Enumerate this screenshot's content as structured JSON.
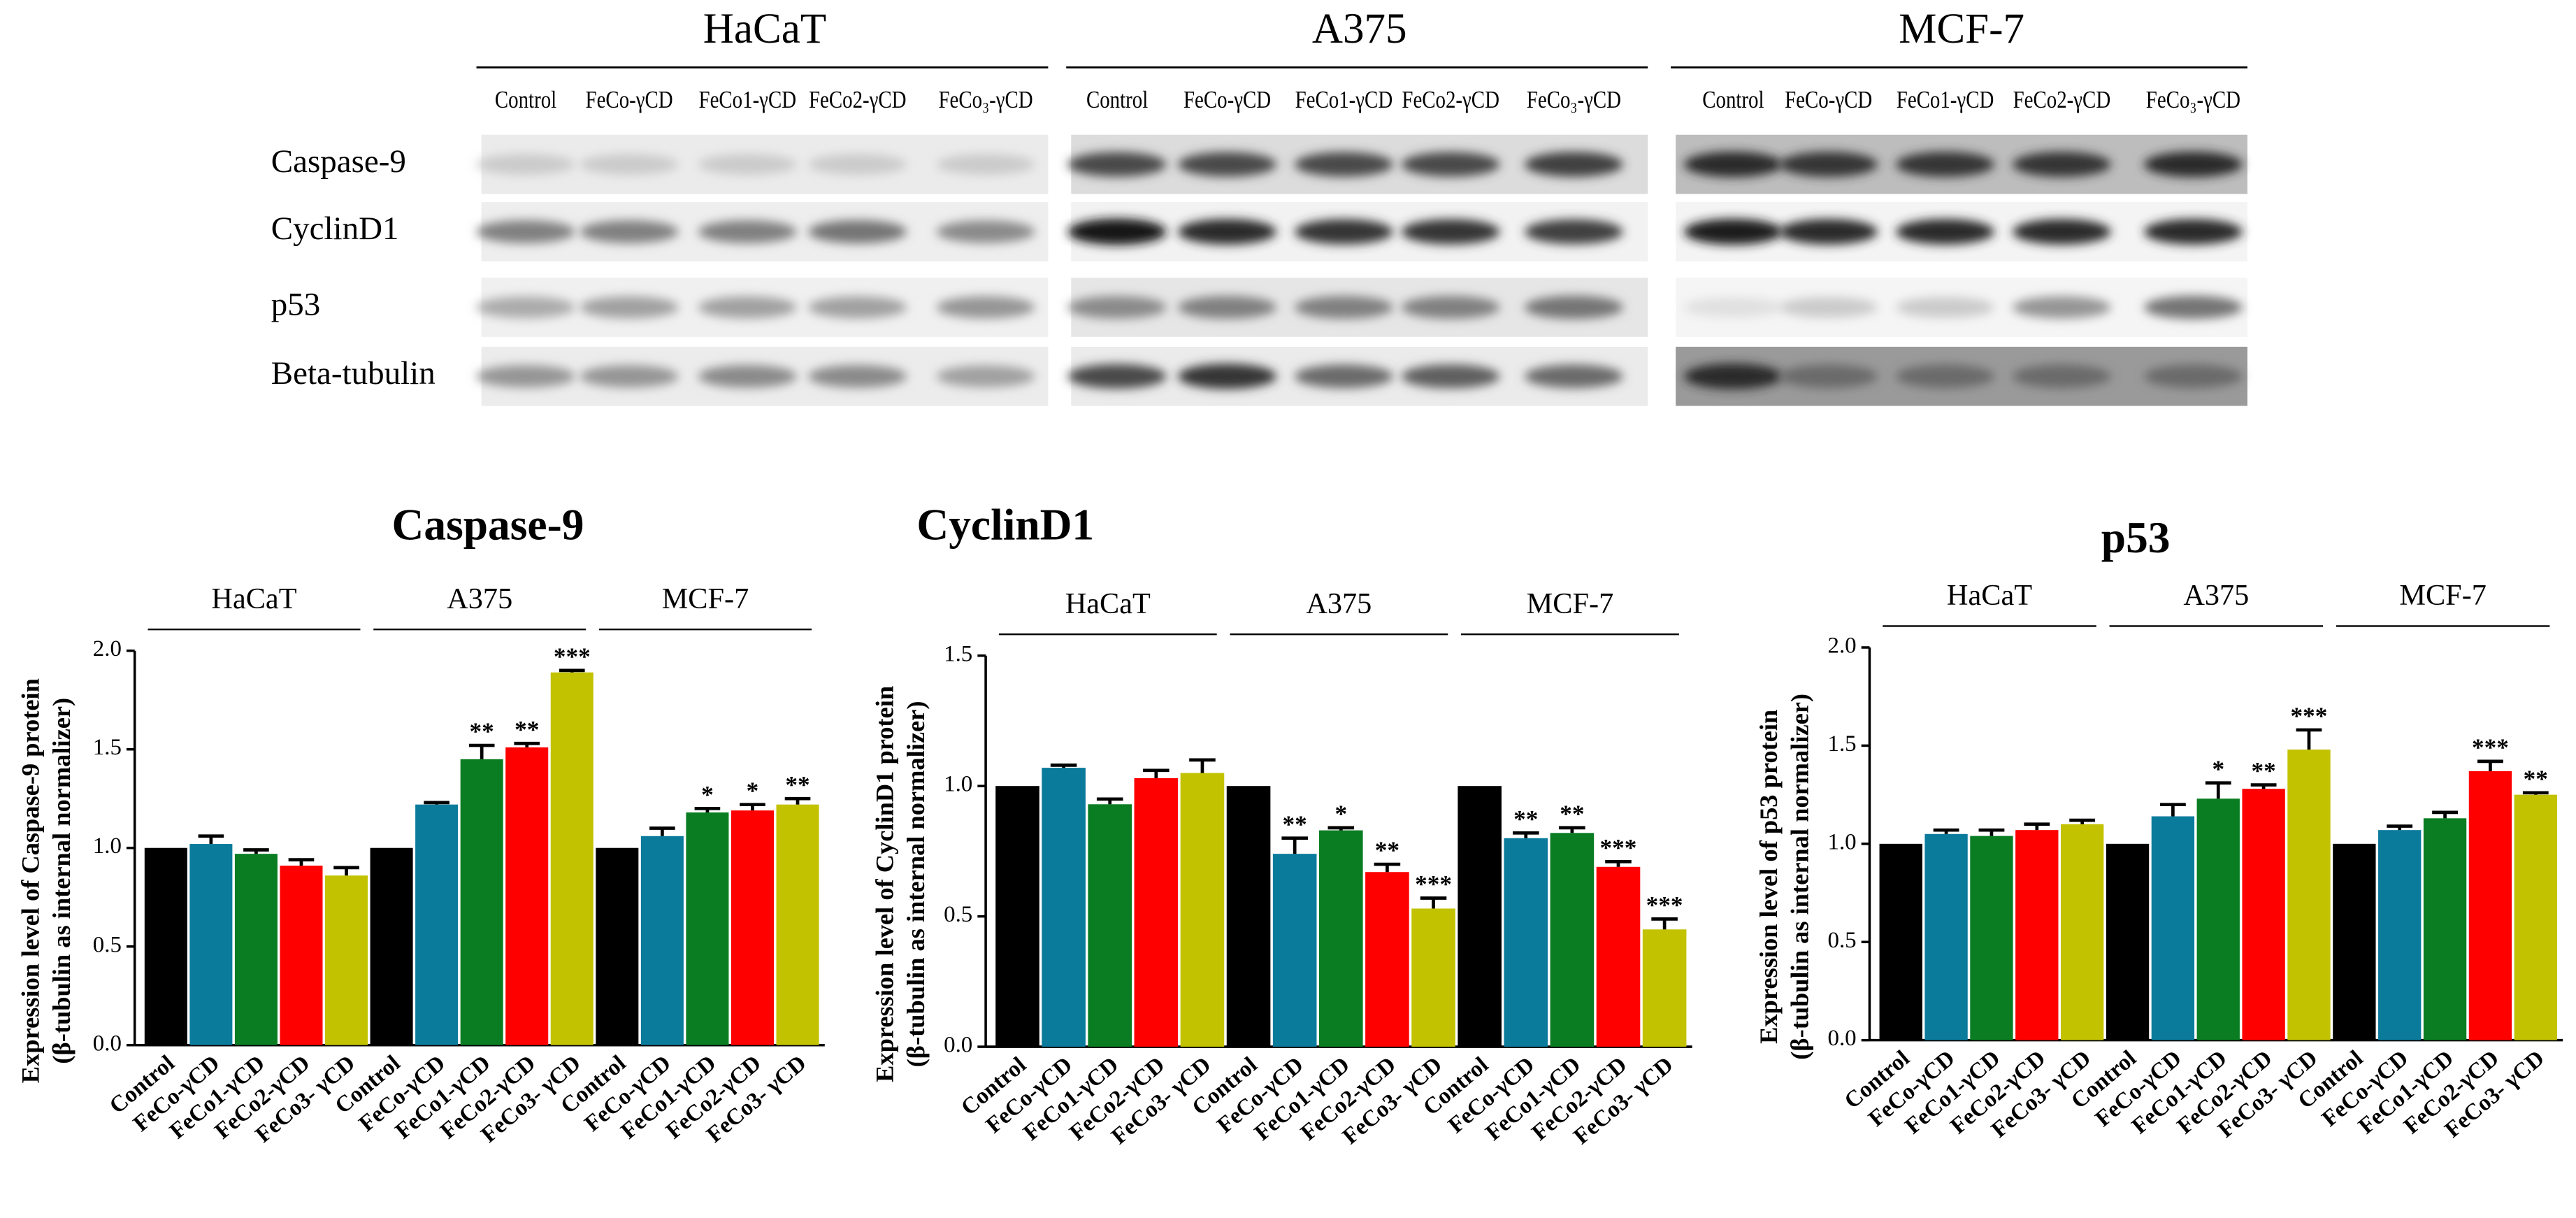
{
  "blot": {
    "cell_lines": [
      {
        "name": "HaCaT",
        "lanes": [
          "Control",
          "FeCo-γCD",
          "FeCo1-γCD",
          "FeCo2-γCD",
          "FeCo₃-γCD"
        ]
      },
      {
        "name": "A375",
        "lanes": [
          "Control",
          "FeCo-γCD",
          "FeCo1-γCD",
          "FeCo2-γCD",
          "FeCo₃-γCD"
        ]
      },
      {
        "name": "MCF-7",
        "lanes": [
          "Control",
          "FeCo-γCD",
          "FeCo1-γCD",
          "FeCo2-γCD",
          "FeCo₃-γCD"
        ]
      }
    ],
    "proteins": [
      "Caspase-9",
      "CyclinD1",
      "p53",
      "Beta-tubulin"
    ]
  },
  "chart_data": [
    {
      "type": "bar",
      "title": "Caspase-9",
      "y_label": [
        "Expression level of Caspase-9 protein",
        "(β-tubulin as internal normalizer)"
      ],
      "groups": [
        "HaCaT",
        "A375",
        "MCF-7"
      ],
      "categories": [
        "Control",
        "FeCo-γCD",
        "FeCo1-γCD",
        "FeCo2-γCD",
        "FeCo3- γCD",
        "Control",
        "FeCo-γCD",
        "FeCo1-γCD",
        "FeCo2-γCD",
        "FeCo3- γCD",
        "Control",
        "FeCo-γCD",
        "FeCo1-γCD",
        "FeCo2-γCD",
        "FeCo3- γCD"
      ],
      "values": [
        1.0,
        1.02,
        0.97,
        0.91,
        0.86,
        1.0,
        1.22,
        1.45,
        1.51,
        1.89,
        1.0,
        1.06,
        1.18,
        1.19,
        1.22
      ],
      "errors": [
        null,
        0.04,
        0.02,
        0.03,
        0.04,
        null,
        0.01,
        0.07,
        0.02,
        0.01,
        null,
        0.04,
        0.02,
        0.03,
        0.03
      ],
      "significance": [
        null,
        null,
        null,
        null,
        null,
        null,
        null,
        "**",
        "**",
        "***",
        null,
        null,
        "*",
        "*",
        "**"
      ],
      "colors": [
        "#000000",
        "#0b7b9c",
        "#0a7d22",
        "#ff0000",
        "#c2c200"
      ],
      "ylim": [
        0,
        2
      ],
      "yticks": [
        {
          "value": 0,
          "label": "0.0"
        },
        {
          "value": 0.5,
          "label": "0.5"
        },
        {
          "value": 1,
          "label": "1.0"
        },
        {
          "value": 1.5,
          "label": "1.5"
        },
        {
          "value": 2,
          "label": "2.0"
        }
      ]
    },
    {
      "type": "bar",
      "title": "CyclinD1",
      "y_label": [
        "Expression level of CyclinD1 protein",
        "(β-tubulin as internal normalizer)"
      ],
      "groups": [
        "HaCaT",
        "A375",
        "MCF-7"
      ],
      "categories": [
        "Control",
        "FeCo-γCD",
        "FeCo1-γCD",
        "FeCo2-γCD",
        "FeCo3- γCD",
        "Control",
        "FeCo-γCD",
        "FeCo1-γCD",
        "FeCo2-γCD",
        "FeCo3- γCD",
        "Control",
        "FeCo-γCD",
        "FeCo1-γCD",
        "FeCo2-γCD",
        "FeCo3- γCD"
      ],
      "values": [
        1.0,
        1.07,
        0.93,
        1.03,
        1.05,
        1.0,
        0.74,
        0.83,
        0.67,
        0.53,
        1.0,
        0.8,
        0.82,
        0.69,
        0.45
      ],
      "errors": [
        null,
        0.01,
        0.02,
        0.03,
        0.05,
        null,
        0.06,
        0.01,
        0.03,
        0.04,
        null,
        0.02,
        0.02,
        0.02,
        0.04
      ],
      "significance": [
        null,
        null,
        null,
        null,
        null,
        null,
        "**",
        "*",
        "**",
        "***",
        null,
        "**",
        "**",
        "***",
        "***"
      ],
      "colors": [
        "#000000",
        "#0b7b9c",
        "#0a7d22",
        "#ff0000",
        "#c2c200"
      ],
      "ylim": [
        0,
        1.5
      ],
      "yticks": [
        {
          "value": 0,
          "label": "0.0"
        },
        0.5,
        {
          "value": 1,
          "label": "1.0"
        },
        1.5
      ]
    },
    {
      "type": "bar",
      "title": "p53",
      "y_label": [
        "Expression level of p53 protein",
        "(β-tubulin as internal normalizer)"
      ],
      "groups": [
        "HaCaT",
        "A375",
        "MCF-7"
      ],
      "categories": [
        "Control",
        "FeCo-γCD",
        "FeCo1-γCD",
        "FeCo2-γCD",
        "FeCo3- γCD",
        "Control",
        "FeCo-γCD",
        "FeCo1-γCD",
        "FeCo2-γCD",
        "FeCo3- γCD",
        "Control",
        "FeCo-γCD",
        "FeCo1-γCD",
        "FeCo2-γCD",
        "FeCo3- γCD"
      ],
      "values": [
        1.0,
        1.05,
        1.04,
        1.07,
        1.1,
        1.0,
        1.14,
        1.23,
        1.28,
        1.48,
        1.0,
        1.07,
        1.13,
        1.37,
        1.25
      ],
      "errors": [
        null,
        0.02,
        0.03,
        0.03,
        0.02,
        null,
        0.06,
        0.08,
        0.02,
        0.1,
        null,
        0.02,
        0.03,
        0.05,
        0.01
      ],
      "significance": [
        null,
        null,
        null,
        null,
        null,
        null,
        null,
        "*",
        "**",
        "***",
        null,
        null,
        null,
        "***",
        "**"
      ],
      "colors": [
        "#000000",
        "#0b7b9c",
        "#0a7d22",
        "#ff0000",
        "#c2c200"
      ],
      "ylim": [
        0,
        2
      ],
      "yticks": [
        {
          "value": 0,
          "label": "0.0"
        },
        {
          "value": 0.5,
          "label": "0.5"
        },
        {
          "value": 1,
          "label": "1.0"
        },
        {
          "value": 1.5,
          "label": "1.5"
        },
        {
          "value": 2,
          "label": "2.0"
        }
      ]
    }
  ]
}
